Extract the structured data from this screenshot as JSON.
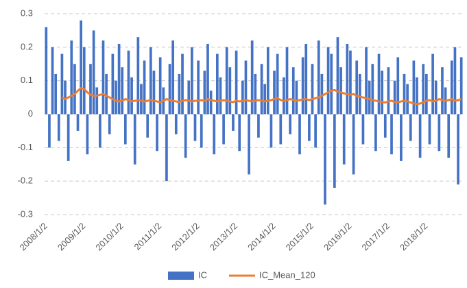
{
  "chart_data": {
    "type": "bar",
    "categories": [
      "2008/1/2",
      null,
      null,
      null,
      null,
      null,
      null,
      null,
      null,
      null,
      null,
      null,
      "2009/1/2",
      null,
      null,
      null,
      null,
      null,
      null,
      null,
      null,
      null,
      null,
      null,
      "2010/1/2",
      null,
      null,
      null,
      null,
      null,
      null,
      null,
      null,
      null,
      null,
      null,
      "2011/1/2",
      null,
      null,
      null,
      null,
      null,
      null,
      null,
      null,
      null,
      null,
      null,
      "2012/1/2",
      null,
      null,
      null,
      null,
      null,
      null,
      null,
      null,
      null,
      null,
      null,
      "2013/1/2",
      null,
      null,
      null,
      null,
      null,
      null,
      null,
      null,
      null,
      null,
      null,
      "2014/1/2",
      null,
      null,
      null,
      null,
      null,
      null,
      null,
      null,
      null,
      null,
      null,
      "2015/1/2",
      null,
      null,
      null,
      null,
      null,
      null,
      null,
      null,
      null,
      null,
      null,
      "2016/1/2",
      null,
      null,
      null,
      null,
      null,
      null,
      null,
      null,
      null,
      null,
      null,
      "2017/1/2",
      null,
      null,
      null,
      null,
      null,
      null,
      null,
      null,
      null,
      null,
      null,
      "2018/1/2",
      null,
      null,
      null,
      null,
      null,
      null,
      null,
      null,
      null,
      null,
      null
    ],
    "series": [
      {
        "name": "IC",
        "color": "#4472c4",
        "type": "bar",
        "values": [
          0.26,
          -0.1,
          0.2,
          0.12,
          -0.08,
          0.18,
          0.1,
          -0.14,
          0.22,
          0.15,
          -0.05,
          0.28,
          0.2,
          -0.12,
          0.15,
          0.25,
          0.08,
          -0.1,
          0.22,
          0.12,
          -0.06,
          0.18,
          0.1,
          0.21,
          0.14,
          -0.09,
          0.19,
          0.11,
          -0.15,
          0.23,
          0.09,
          0.16,
          -0.07,
          0.2,
          0.13,
          -0.11,
          0.17,
          0.08,
          -0.2,
          0.15,
          0.22,
          -0.06,
          0.12,
          0.18,
          -0.13,
          0.1,
          0.2,
          -0.08,
          0.16,
          -0.1,
          0.13,
          0.21,
          0.07,
          -0.12,
          0.18,
          0.11,
          -0.09,
          0.2,
          0.14,
          -0.05,
          0.19,
          -0.11,
          0.1,
          0.16,
          -0.18,
          0.22,
          0.12,
          -0.07,
          0.15,
          0.09,
          0.2,
          -0.1,
          0.13,
          0.18,
          -0.09,
          0.11,
          0.2,
          -0.06,
          0.14,
          0.1,
          -0.12,
          0.17,
          0.21,
          -0.08,
          0.15,
          -0.1,
          0.22,
          0.12,
          -0.27,
          0.2,
          0.18,
          -0.22,
          0.23,
          0.14,
          -0.15,
          0.21,
          0.19,
          -0.18,
          0.16,
          0.12,
          -0.09,
          0.2,
          0.1,
          0.15,
          -0.11,
          0.18,
          0.13,
          -0.07,
          0.14,
          -0.12,
          0.1,
          0.17,
          -0.14,
          0.12,
          0.09,
          -0.08,
          0.16,
          0.11,
          -0.13,
          0.15,
          0.12,
          -0.09,
          0.18,
          0.1,
          -0.11,
          0.14,
          0.08,
          -0.13,
          0.16,
          0.2,
          -0.21,
          0.17
        ]
      },
      {
        "name": "IC_Mean_120",
        "color": "#ed7d31",
        "type": "line",
        "values": [
          null,
          null,
          null,
          null,
          null,
          0.05,
          0.045,
          0.05,
          0.055,
          0.06,
          0.07,
          0.078,
          0.075,
          0.065,
          0.058,
          0.055,
          0.055,
          0.058,
          0.06,
          0.055,
          0.05,
          0.045,
          0.04,
          0.038,
          0.04,
          0.045,
          0.042,
          0.038,
          0.04,
          0.042,
          0.04,
          0.038,
          0.04,
          0.042,
          0.04,
          0.038,
          0.035,
          0.04,
          0.045,
          0.042,
          0.04,
          0.038,
          0.036,
          0.04,
          0.042,
          0.04,
          0.038,
          0.04,
          0.04,
          0.042,
          0.04,
          0.045,
          0.042,
          0.04,
          0.038,
          0.04,
          0.042,
          0.04,
          0.038,
          0.036,
          0.04,
          0.038,
          0.04,
          0.042,
          0.04,
          0.038,
          0.04,
          0.042,
          0.04,
          0.038,
          0.04,
          0.042,
          0.045,
          0.048,
          0.042,
          0.04,
          0.042,
          0.045,
          0.043,
          0.04,
          0.042,
          0.044,
          0.045,
          0.042,
          0.045,
          0.048,
          0.05,
          0.055,
          0.06,
          0.065,
          0.07,
          0.072,
          0.068,
          0.065,
          0.062,
          0.06,
          0.058,
          0.06,
          0.055,
          0.052,
          0.05,
          0.048,
          0.045,
          0.042,
          0.04,
          0.038,
          0.036,
          0.035,
          0.038,
          0.04,
          0.036,
          0.035,
          0.038,
          0.04,
          0.038,
          0.035,
          0.032,
          0.03,
          0.032,
          0.035,
          0.04,
          0.042,
          0.038,
          0.04,
          0.045,
          0.042,
          0.04,
          0.042,
          0.045,
          0.04,
          0.042,
          0.045
        ]
      }
    ],
    "ylim": [
      -0.3,
      0.3
    ],
    "yticks": [
      -0.3,
      -0.2,
      -0.1,
      0,
      0.1,
      0.2,
      0.3
    ],
    "grid": true,
    "legend": "bottom"
  }
}
